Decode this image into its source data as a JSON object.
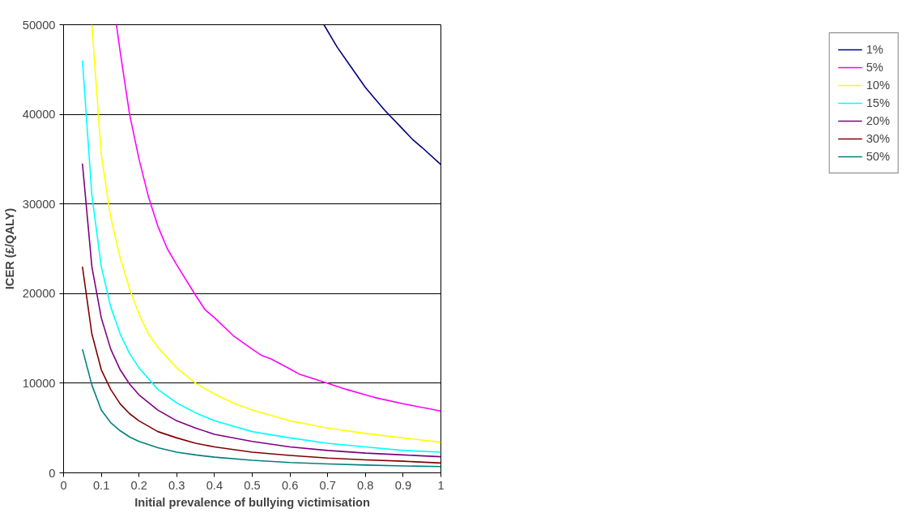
{
  "chart_data": {
    "type": "line",
    "xlabel": "Initial prevalence of bullying victimisation",
    "ylabel": "ICER (£/QALY)",
    "xlim": [
      0,
      1
    ],
    "xticks": [
      0,
      0.1,
      0.2,
      0.3,
      0.4,
      0.5,
      0.6,
      0.7,
      0.8,
      0.9,
      1
    ],
    "ylim": [
      0,
      50000
    ],
    "yticks": [
      0,
      10000,
      20000,
      30000,
      40000,
      50000
    ],
    "grid": "y",
    "legend": "right",
    "marker": "none",
    "line_style": "solid",
    "x": [
      0.05,
      0.075,
      0.1,
      0.125,
      0.15,
      0.175,
      0.2,
      0.25,
      0.3,
      0.35,
      0.4,
      0.5,
      0.6,
      0.7,
      0.8,
      0.9,
      1
    ],
    "series": [
      {
        "name": "1%",
        "color": "#000080",
        "x": [
          0.69,
          0.725,
          0.75,
          0.8,
          0.85,
          0.9,
          0.925,
          0.95,
          1
        ],
        "values": [
          50000,
          47500,
          46000,
          43000,
          40500,
          38300,
          37200,
          36300,
          34400
        ]
      },
      {
        "name": "5%",
        "color": "#ff00ff",
        "x": [
          0.14,
          0.15,
          0.175,
          0.2,
          0.225,
          0.25,
          0.275,
          0.3,
          0.35,
          0.375,
          0.4,
          0.45,
          0.5,
          0.525,
          0.55,
          0.6,
          0.625,
          0.7,
          0.75,
          0.8,
          0.825,
          0.9,
          1
        ],
        "values": [
          50000,
          47000,
          40000,
          35000,
          30800,
          27500,
          25000,
          23200,
          19800,
          18200,
          17300,
          15300,
          13800,
          13100,
          12700,
          11600,
          11000,
          10000,
          9300,
          8700,
          8400,
          7700,
          6900
        ]
      },
      {
        "name": "10%",
        "color": "#ffff00",
        "x": [
          0.075,
          0.1,
          0.125,
          0.15,
          0.175,
          0.2,
          0.225,
          0.25,
          0.3,
          0.35,
          0.4,
          0.45,
          0.5,
          0.6,
          0.7,
          0.8,
          0.9,
          1
        ],
        "values": [
          50000,
          35500,
          28500,
          24000,
          20500,
          17700,
          15500,
          14000,
          11700,
          10000,
          8800,
          7800,
          7000,
          5800,
          5000,
          4400,
          3900,
          3400
        ]
      },
      {
        "name": "15%",
        "color": "#00ffff",
        "values": [
          46000,
          31000,
          23000,
          18500,
          15500,
          13300,
          11700,
          9300,
          7800,
          6700,
          5800,
          4600,
          3900,
          3300,
          2900,
          2500,
          2300
        ]
      },
      {
        "name": "20%",
        "color": "#800080",
        "values": [
          34500,
          23000,
          17300,
          13800,
          11500,
          9900,
          8700,
          7000,
          5800,
          5000,
          4300,
          3500,
          2900,
          2500,
          2200,
          2000,
          1800
        ]
      },
      {
        "name": "30%",
        "color": "#800000",
        "values": [
          23000,
          15500,
          11500,
          9300,
          7700,
          6600,
          5800,
          4600,
          3900,
          3300,
          2900,
          2300,
          1950,
          1650,
          1450,
          1300,
          1100
        ]
      },
      {
        "name": "50%",
        "color": "#008080",
        "values": [
          13800,
          9800,
          7000,
          5600,
          4700,
          4000,
          3500,
          2800,
          2300,
          2000,
          1750,
          1400,
          1150,
          1000,
          870,
          770,
          700
        ]
      }
    ]
  }
}
